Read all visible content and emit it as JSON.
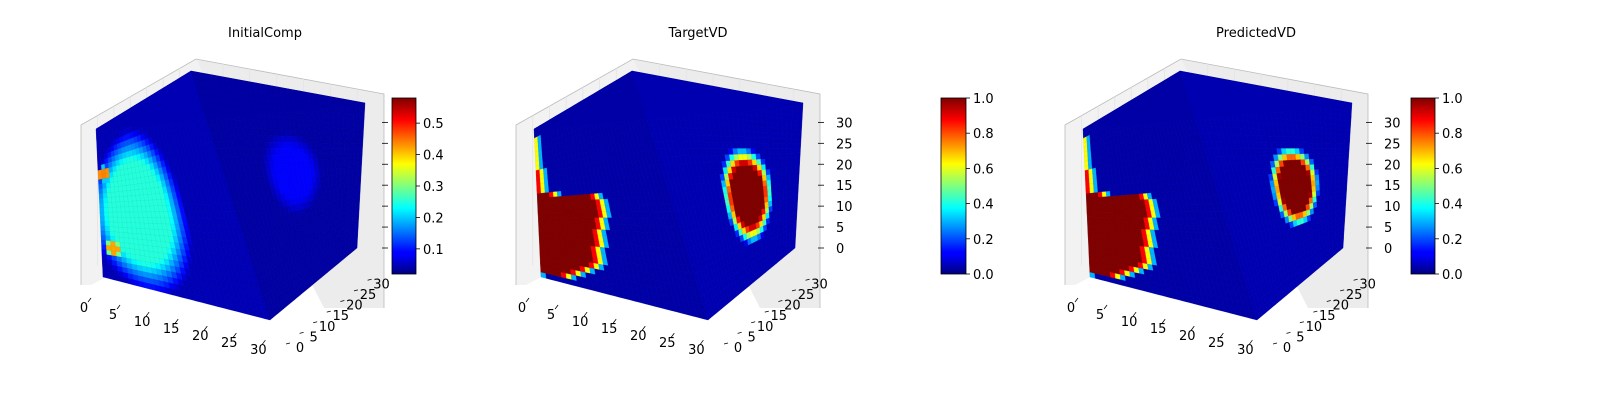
{
  "figure": {
    "background": "#ffffff"
  },
  "chart_data": [
    {
      "type": "heatmap",
      "title": "InitialComp",
      "xlabel": "",
      "ylabel": "",
      "zlabel": "",
      "x_ticks": [
        0,
        5,
        10,
        15,
        20,
        25,
        30
      ],
      "y_ticks": [
        0,
        5,
        10,
        15,
        20,
        25,
        30
      ],
      "z_ticks": [],
      "xlim": [
        0,
        32
      ],
      "ylim": [
        0,
        32
      ],
      "zlim": [
        0,
        32
      ],
      "colorbar": {
        "ticks": [
          0.1,
          0.2,
          0.3,
          0.4,
          0.5
        ],
        "ticklabels": [
          "0.1",
          "0.2",
          "0.3",
          "0.4",
          "0.5"
        ],
        "min": 0.02,
        "max": 0.58
      },
      "colormap": "jet",
      "faces": {
        "front": {
          "background": 0.05,
          "blobs": [
            {
              "u": 9,
              "v": 18,
              "ru": 8.5,
              "rv": 11,
              "value": 0.25
            },
            {
              "u": 1.5,
              "v": 10,
              "ru": 1.3,
              "rv": 1.3,
              "value": 0.44
            },
            {
              "u": 2.5,
              "v": 25.5,
              "ru": 1.5,
              "rv": 1.3,
              "value": 0.42
            }
          ]
        },
        "side": {
          "background": 0.04,
          "blobs": [
            {
              "u": 16,
              "v": 14,
              "ru": 5,
              "rv": 5,
              "value": 0.09
            }
          ]
        },
        "top": {
          "background": 0.04,
          "blobs": []
        }
      }
    },
    {
      "type": "heatmap",
      "title": "TargetVD",
      "xlabel": "",
      "ylabel": "",
      "zlabel": "",
      "x_ticks": [
        0,
        5,
        10,
        15,
        20,
        25,
        30
      ],
      "y_ticks": [
        0,
        5,
        10,
        15,
        20,
        25,
        30
      ],
      "z_ticks": [
        0,
        5,
        10,
        15,
        20,
        25,
        30
      ],
      "xlim": [
        0,
        32
      ],
      "ylim": [
        0,
        32
      ],
      "zlim": [
        0,
        32
      ],
      "colorbar": {
        "ticks": [
          0.0,
          0.2,
          0.4,
          0.6,
          0.8,
          1.0
        ],
        "ticklabels": [
          "0.0",
          "0.2",
          "0.4",
          "0.6",
          "0.8",
          "1.0"
        ],
        "min": 0.0,
        "max": 1.0
      },
      "colormap": "jet",
      "faces": {
        "front": {
          "background": 0.04,
          "shape": "crescent"
        },
        "side": {
          "background": 0.05,
          "blobs": [
            {
              "u": 19,
              "v": 18,
              "ru": 4.8,
              "rv": 6.2,
              "value": 1.0
            }
          ]
        },
        "top": {
          "background": 0.04,
          "blobs": []
        }
      }
    },
    {
      "type": "heatmap",
      "title": "PredictedVD",
      "xlabel": "",
      "ylabel": "",
      "zlabel": "",
      "x_ticks": [
        0,
        5,
        10,
        15,
        20,
        25,
        30
      ],
      "y_ticks": [
        0,
        5,
        10,
        15,
        20,
        25,
        30
      ],
      "z_ticks": [
        0,
        5,
        10,
        15,
        20,
        25,
        30
      ],
      "xlim": [
        0,
        32
      ],
      "ylim": [
        0,
        32
      ],
      "zlim": [
        0,
        32
      ],
      "colorbar": {
        "ticks": [
          0.0,
          0.2,
          0.4,
          0.6,
          0.8,
          1.0
        ],
        "ticklabels": [
          "0.0",
          "0.2",
          "0.4",
          "0.6",
          "0.8",
          "1.0"
        ],
        "min": 0.0,
        "max": 1.0
      },
      "colormap": "jet",
      "faces": {
        "front": {
          "background": 0.04,
          "shape": "crescent"
        },
        "side": {
          "background": 0.05,
          "blobs": [
            {
              "u": 19,
              "v": 16.5,
              "ru": 4.5,
              "rv": 5.2,
              "value": 1.0
            }
          ]
        },
        "top": {
          "background": 0.04,
          "blobs": []
        }
      }
    }
  ]
}
